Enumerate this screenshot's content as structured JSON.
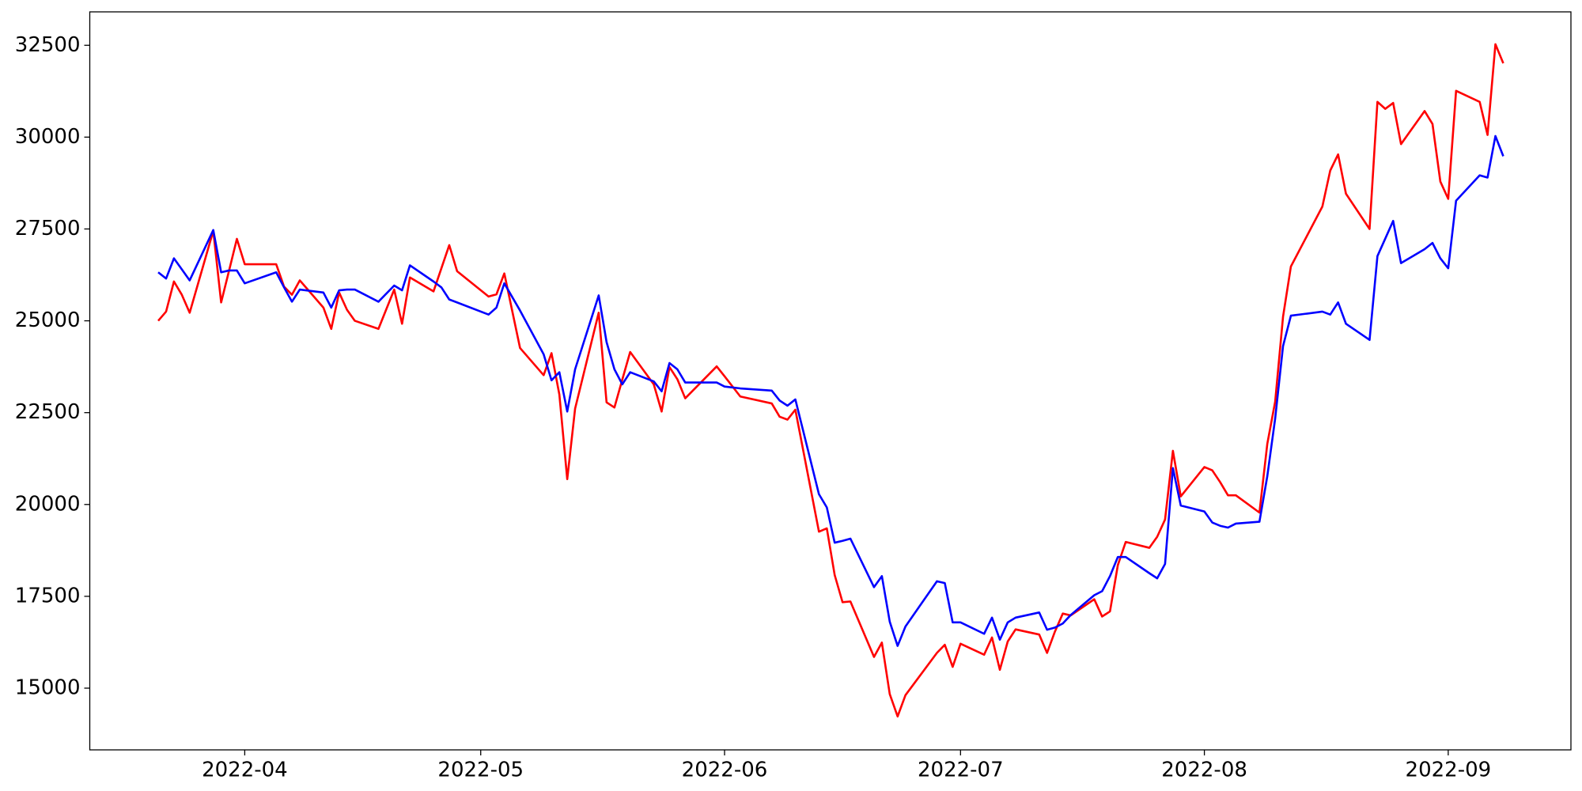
{
  "chart_data": {
    "type": "line",
    "x": [
      80,
      81,
      82,
      83,
      84,
      87,
      88,
      89,
      90,
      91,
      95,
      96,
      97,
      98,
      101,
      102,
      103,
      104,
      105,
      108,
      110,
      111,
      112,
      115,
      116,
      117,
      118,
      122,
      123,
      124,
      126,
      129,
      130,
      131,
      132,
      133,
      136,
      137,
      138,
      139,
      140,
      143,
      144,
      145,
      146,
      147,
      151,
      152,
      154,
      158,
      159,
      160,
      161,
      164,
      165,
      166,
      167,
      168,
      171,
      172,
      173,
      174,
      175,
      179,
      180,
      181,
      182,
      185,
      186,
      187,
      188,
      189,
      192,
      193,
      194,
      195,
      196,
      199,
      200,
      201,
      202,
      203,
      206,
      207,
      208,
      209,
      210,
      213,
      214,
      215,
      216,
      217,
      220,
      221,
      222,
      223,
      224,
      228,
      229,
      230,
      231,
      234,
      235,
      236,
      237,
      238,
      241,
      242,
      243,
      244,
      245,
      248,
      249,
      250,
      251
    ],
    "series": [
      {
        "color": "#ff0000",
        "values": [
          25000,
          25250,
          26070,
          25710,
          25220,
          27450,
          25500,
          26360,
          27230,
          26540,
          26540,
          25930,
          25710,
          26100,
          25360,
          24780,
          25770,
          25300,
          25000,
          24780,
          25850,
          24920,
          26180,
          25800,
          26430,
          27060,
          26350,
          25660,
          25720,
          26290,
          24260,
          23520,
          24120,
          22990,
          20690,
          22610,
          25220,
          22780,
          22640,
          23400,
          24150,
          23270,
          22530,
          23740,
          23410,
          22890,
          23760,
          23490,
          22940,
          22750,
          22390,
          22310,
          22580,
          19260,
          19350,
          18080,
          17340,
          17360,
          15850,
          16240,
          14840,
          14230,
          14810,
          15960,
          16180,
          15580,
          16210,
          15910,
          16380,
          15500,
          16270,
          16600,
          16460,
          15960,
          16540,
          17030,
          16980,
          17420,
          16950,
          17090,
          18350,
          18980,
          18820,
          19120,
          19590,
          21460,
          20220,
          21020,
          20930,
          20610,
          20250,
          20250,
          19780,
          21650,
          22800,
          25110,
          26480,
          28110,
          29090,
          29530,
          28460,
          27500,
          30960,
          30770,
          30930,
          29810,
          30710,
          30360,
          28790,
          28320,
          31260,
          30960,
          30060,
          32530,
          32010
        ]
      },
      {
        "color": "#0000ff",
        "values": [
          26320,
          26150,
          26700,
          26400,
          26100,
          27470,
          26320,
          26370,
          26370,
          26020,
          26320,
          25910,
          25520,
          25850,
          25770,
          25360,
          25830,
          25850,
          25850,
          25520,
          25960,
          25830,
          26510,
          26070,
          25910,
          25580,
          25500,
          25170,
          25360,
          26020,
          25280,
          24090,
          23380,
          23600,
          22530,
          23680,
          25690,
          24420,
          23680,
          23270,
          23600,
          23350,
          23080,
          23850,
          23680,
          23320,
          23320,
          23210,
          23160,
          23100,
          22830,
          22690,
          22860,
          20280,
          19920,
          18960,
          19010,
          19070,
          17750,
          18050,
          16810,
          16150,
          16680,
          17910,
          17860,
          16790,
          16790,
          16480,
          16920,
          16320,
          16790,
          16920,
          17060,
          16590,
          16650,
          16760,
          16990,
          17530,
          17640,
          18050,
          18570,
          18570,
          18130,
          17990,
          18380,
          20990,
          19970,
          19810,
          19510,
          19420,
          19370,
          19480,
          19530,
          20770,
          22340,
          24310,
          25140,
          25250,
          25170,
          25500,
          24920,
          24480,
          26760,
          27240,
          27720,
          26570,
          26950,
          27120,
          26700,
          26430,
          28270,
          28960,
          28900,
          30030,
          29480
        ]
      }
    ],
    "xlim": [
      71.3,
      259.6
    ],
    "xticks": [
      {
        "value": 91,
        "label": "2022-04"
      },
      {
        "value": 121,
        "label": "2022-05"
      },
      {
        "value": 152,
        "label": "2022-06"
      },
      {
        "value": 182,
        "label": "2022-07"
      },
      {
        "value": 213,
        "label": "2022-08"
      },
      {
        "value": 244,
        "label": "2022-09"
      }
    ],
    "ylim": [
      13320,
      33410
    ],
    "yticks": [
      15000,
      17500,
      20000,
      22500,
      25000,
      27500,
      30000,
      32500
    ],
    "grid": false
  }
}
